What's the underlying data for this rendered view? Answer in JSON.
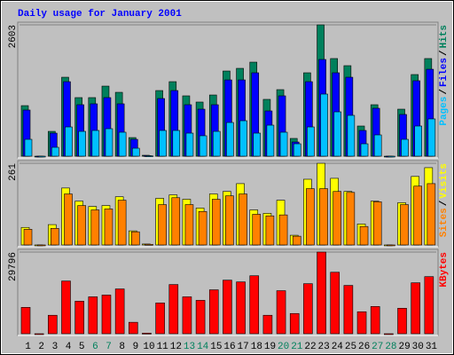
{
  "chart_data": [
    {
      "type": "bar",
      "title": "Daily usage for January 2001",
      "title_color": "#0000ff",
      "legend_separator": "/",
      "ylim": [
        0,
        2603
      ],
      "yticks": [
        2603
      ],
      "series": [
        {
          "name": "Pages",
          "color": "#00c0ff",
          "values": [
            334,
            0,
            176,
            580,
            492,
            510,
            545,
            475,
            158,
            8,
            510,
            510,
            457,
            405,
            492,
            668,
            703,
            457,
            615,
            475,
            246,
            580,
            1231,
            879,
            809,
            246,
            422,
            0,
            334,
            598,
            739
          ]
        },
        {
          "name": "Files",
          "color": "#0000ff",
          "values": [
            915,
            0,
            457,
            1477,
            1020,
            1038,
            1161,
            1038,
            334,
            12,
            1143,
            1301,
            1020,
            932,
            1020,
            1512,
            1512,
            1653,
            897,
            1196,
            281,
            1477,
            1917,
            1653,
            1565,
            510,
            950,
            0,
            827,
            1495,
            1723
          ]
        },
        {
          "name": "Hits",
          "color": "#00805c",
          "values": [
            1002,
            0,
            492,
            1565,
            1161,
            1161,
            1389,
            1266,
            369,
            18,
            1301,
            1477,
            1196,
            1073,
            1213,
            1688,
            1741,
            1864,
            1126,
            1319,
            352,
            1653,
            2603,
            1935,
            1794,
            598,
            1020,
            0,
            932,
            1618,
            1935
          ]
        }
      ]
    },
    {
      "type": "bar",
      "legend_separator": "/",
      "ylim": [
        0,
        261
      ],
      "yticks": [
        261
      ],
      "series": [
        {
          "name": "Sites",
          "color": "#ff8000",
          "values": [
            50,
            0,
            53,
            163,
            126,
            112,
            115,
            143,
            42,
            2,
            129,
            151,
            129,
            107,
            146,
            157,
            163,
            98,
            93,
            96,
            28,
            180,
            180,
            171,
            168,
            59,
            138,
            0,
            129,
            188,
            196
          ]
        },
        {
          "name": "Visits",
          "color": "#ffff00",
          "values": [
            56,
            0,
            65,
            182,
            140,
            123,
            126,
            154,
            45,
            3,
            149,
            160,
            146,
            118,
            163,
            171,
            196,
            112,
            101,
            143,
            31,
            210,
            261,
            213,
            171,
            67,
            140,
            0,
            135,
            219,
            247
          ]
        }
      ]
    },
    {
      "type": "bar",
      "ylim": [
        0,
        29796
      ],
      "yticks": [
        29796
      ],
      "series": [
        {
          "name": "KBytes",
          "color": "#ff0000",
          "values": [
            9612,
            0,
            6728,
            19223,
            11854,
            13456,
            14097,
            16340,
            4165,
            200,
            11214,
            17942,
            13456,
            12175,
            16019,
            19544,
            18903,
            21146,
            6728,
            15699,
            7369,
            18262,
            29796,
            22427,
            17621,
            8010,
            9932,
            0,
            9291,
            18582,
            20825
          ]
        }
      ],
      "categories": [
        "1",
        "2",
        "3",
        "4",
        "5",
        "6",
        "7",
        "8",
        "9",
        "10",
        "11",
        "12",
        "13",
        "14",
        "15",
        "16",
        "17",
        "18",
        "19",
        "20",
        "21",
        "22",
        "23",
        "24",
        "25",
        "26",
        "27",
        "28",
        "29",
        "30",
        "31"
      ],
      "category_colors": [
        "#000000",
        "#000000",
        "#000000",
        "#000000",
        "#000000",
        "#00805c",
        "#00805c",
        "#000000",
        "#000000",
        "#000000",
        "#000000",
        "#000000",
        "#00805c",
        "#00805c",
        "#000000",
        "#000000",
        "#000000",
        "#000000",
        "#000000",
        "#00805c",
        "#00805c",
        "#000000",
        "#000000",
        "#000000",
        "#000000",
        "#000000",
        "#00805c",
        "#00805c",
        "#000000",
        "#000000",
        "#000000"
      ]
    }
  ]
}
